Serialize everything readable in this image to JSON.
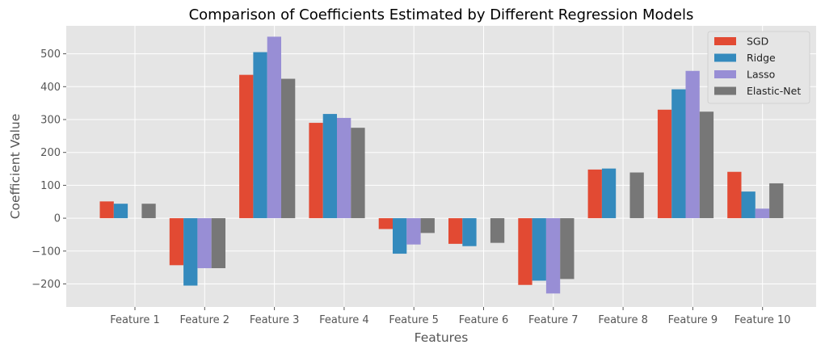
{
  "chart_data": {
    "type": "bar",
    "title": "Comparison of Coefficients Estimated by Different Regression Models",
    "xlabel": "Features",
    "ylabel": "Coefficient Value",
    "categories": [
      "Feature 1",
      "Feature 2",
      "Feature 3",
      "Feature 4",
      "Feature 5",
      "Feature 6",
      "Feature 7",
      "Feature 8",
      "Feature 9",
      "Feature 10"
    ],
    "series": [
      {
        "name": "SGD",
        "color": "#E24A33",
        "values": [
          51,
          -143,
          436,
          290,
          -33,
          -78,
          -203,
          148,
          330,
          141
        ]
      },
      {
        "name": "Ridge",
        "color": "#348ABD",
        "values": [
          44,
          -205,
          505,
          317,
          -108,
          -85,
          -190,
          151,
          392,
          81
        ]
      },
      {
        "name": "Lasso",
        "color": "#988ED5",
        "values": [
          0,
          -152,
          552,
          305,
          -80,
          0,
          -229,
          0,
          448,
          29
        ]
      },
      {
        "name": "Elastic-Net",
        "color": "#777777",
        "values": [
          44,
          -152,
          424,
          275,
          -45,
          -75,
          -185,
          139,
          324,
          106
        ]
      }
    ],
    "yticks": [
      -200,
      -100,
      0,
      100,
      200,
      300,
      400,
      500
    ],
    "ytick_labels": [
      "−200",
      "−100",
      "0",
      "100",
      "200",
      "300",
      "400",
      "500"
    ],
    "ylim": [
      -270,
      585
    ],
    "grid": true,
    "legend_position": "top-right",
    "style": {
      "background": "#E5E5E5",
      "grid": "#FFFFFF"
    }
  }
}
